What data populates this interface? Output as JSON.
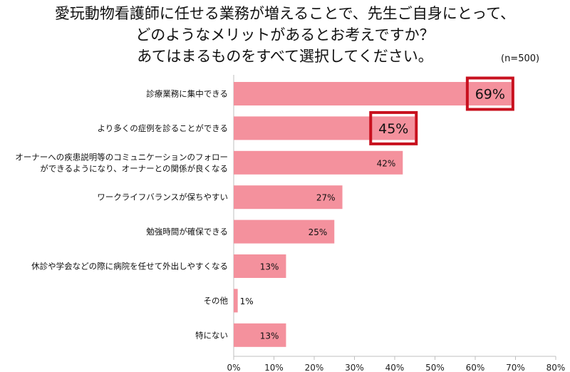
{
  "title_lines": [
    "愛玩動物看護師に任せる業務が増えることで、先生ご自身にとって、",
    "どのようなメリットがあるとお考えですか？",
    "あてはまるものをすべて選択してください。"
  ],
  "sample_note": "(n=500)",
  "chart_data": {
    "type": "bar",
    "orientation": "horizontal",
    "categories": [
      [
        "診療業務に集中できる"
      ],
      [
        "より多くの症例を診ることができる"
      ],
      [
        "オーナーへの疾患説明等のコミュニケーションのフォロー",
        "ができるようになり、オーナーとの関係が良くなる"
      ],
      [
        "ワークライフバランスが保ちやすい"
      ],
      [
        "勉強時間が確保できる"
      ],
      [
        "休診や学会などの際に病院を任せて外出しやすくなる"
      ],
      [
        "その他"
      ],
      [
        "特にない"
      ]
    ],
    "values": [
      69,
      45,
      42,
      27,
      25,
      13,
      1,
      13
    ],
    "value_labels": [
      "69%",
      "45%",
      "42%",
      "27%",
      "25%",
      "13%",
      "1%",
      "13%"
    ],
    "highlighted": [
      0,
      1
    ],
    "xlim": [
      0,
      80
    ],
    "xticks": [
      0,
      10,
      20,
      30,
      40,
      50,
      60,
      70,
      80
    ],
    "xtick_labels": [
      "0%",
      "10%",
      "20%",
      "30%",
      "40%",
      "50%",
      "60%",
      "70%",
      "80%"
    ],
    "grid": false,
    "bar_color": "#f4919d",
    "highlight_color": "#c8101e"
  }
}
